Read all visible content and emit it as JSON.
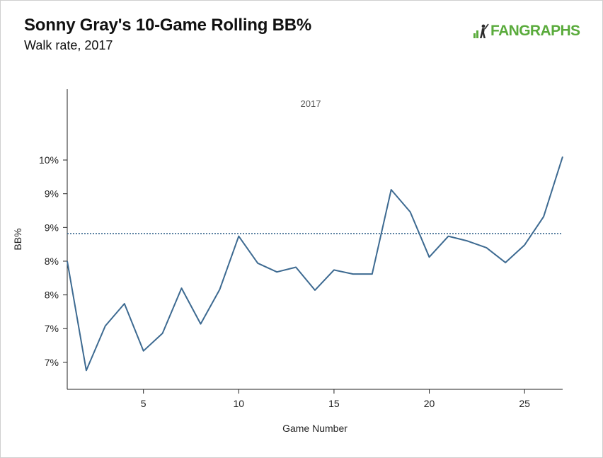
{
  "header": {
    "title": "Sonny Gray's 10-Game Rolling BB%",
    "subtitle": "Walk rate, 2017",
    "brand": "FANGRAPHS",
    "brand_icon": "fangraphs-batter-logo-icon",
    "brand_color": "#5aab3c"
  },
  "chart_data": {
    "type": "line",
    "title": "Sonny Gray's 10-Game Rolling BB%",
    "subtitle": "Walk rate, 2017",
    "xlabel": "Game Number",
    "ylabel": "BB%",
    "xlim": [
      1,
      27
    ],
    "ylim": [
      6.1,
      10.55
    ],
    "x_ticks": [
      5,
      10,
      15,
      20,
      25
    ],
    "y_ticks": [
      {
        "value": 6.5,
        "label": "7%"
      },
      {
        "value": 7.0,
        "label": "7%"
      },
      {
        "value": 7.5,
        "label": "8%"
      },
      {
        "value": 8.0,
        "label": "8%"
      },
      {
        "value": 8.5,
        "label": "9%"
      },
      {
        "value": 9.0,
        "label": "9%"
      },
      {
        "value": 9.5,
        "label": "10%"
      }
    ],
    "annotation": "2017",
    "reference_line": {
      "value": 8.41,
      "style": "dotted"
    },
    "grid": false,
    "series": [
      {
        "color": "#3d6a91",
        "x": [
          1,
          2,
          3,
          4,
          5,
          6,
          7,
          8,
          9,
          10,
          11,
          12,
          13,
          14,
          15,
          16,
          17,
          18,
          19,
          20,
          21,
          22,
          23,
          24,
          25,
          26,
          27
        ],
        "y": [
          8.0,
          6.38,
          7.04,
          7.37,
          6.67,
          6.93,
          7.6,
          7.07,
          7.58,
          8.37,
          7.97,
          7.84,
          7.91,
          7.57,
          7.87,
          7.81,
          7.81,
          9.06,
          8.73,
          8.06,
          8.37,
          8.3,
          8.2,
          7.98,
          8.24,
          8.66,
          9.55
        ]
      }
    ]
  }
}
